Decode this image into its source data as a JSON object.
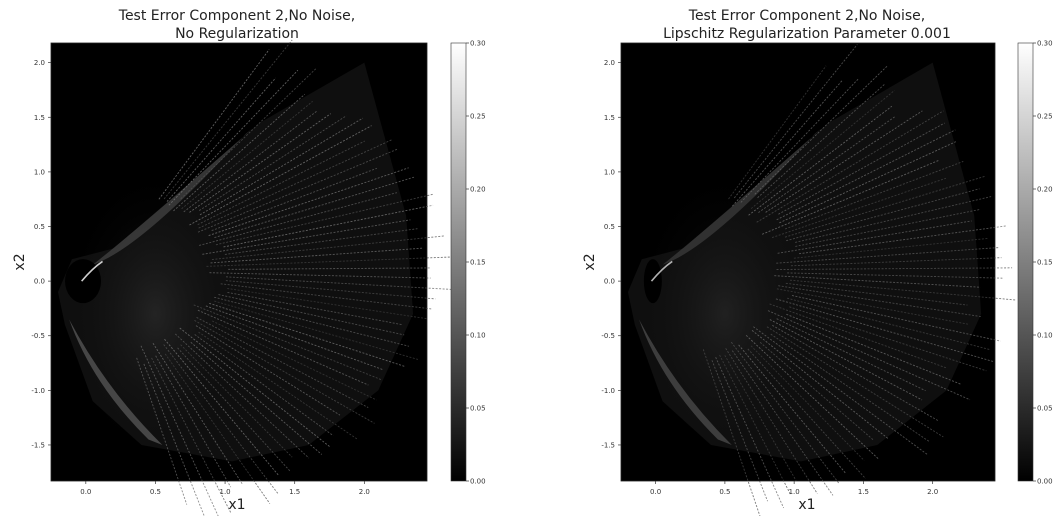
{
  "chart_data": [
    {
      "type": "heatmap",
      "colormap": "gray",
      "title_line1": "Test Error Component 2,No Noise,",
      "title_line2": "No Regularization",
      "xlabel": "x1",
      "ylabel": "x2",
      "xlim": [
        -0.25,
        2.45
      ],
      "ylim": [
        -1.83,
        2.18
      ],
      "xticks": [
        "0.0",
        "0.5",
        "1.0",
        "1.5",
        "2.0"
      ],
      "yticks": [
        "2.0",
        "1.5",
        "1.0",
        "0.5",
        "0.0",
        "-0.5",
        "-1.0",
        "-1.5"
      ],
      "colorbar": {
        "min": 0.0,
        "max": 0.3,
        "ticks": [
          "0.30",
          "0.25",
          "0.20",
          "0.15",
          "0.10",
          "0.05",
          "0.00"
        ]
      }
    },
    {
      "type": "heatmap",
      "colormap": "gray",
      "title_line1": "Test Error Component 2,No Noise,",
      "title_line2": "Lipschitz Regularization Parameter 0.001",
      "xlabel": "x1",
      "ylabel": "x2",
      "xlim": [
        -0.25,
        2.45
      ],
      "ylim": [
        -1.83,
        2.18
      ],
      "xticks": [
        "0.0",
        "0.5",
        "1.0",
        "1.5",
        "2.0"
      ],
      "yticks": [
        "2.0",
        "1.5",
        "1.0",
        "0.5",
        "0.0",
        "-0.5",
        "-1.0",
        "-1.5"
      ],
      "colorbar": {
        "min": 0.0,
        "max": 0.3,
        "ticks": [
          "0.30",
          "0.25",
          "0.20",
          "0.15",
          "0.10",
          "0.05",
          "0.00"
        ]
      }
    }
  ]
}
